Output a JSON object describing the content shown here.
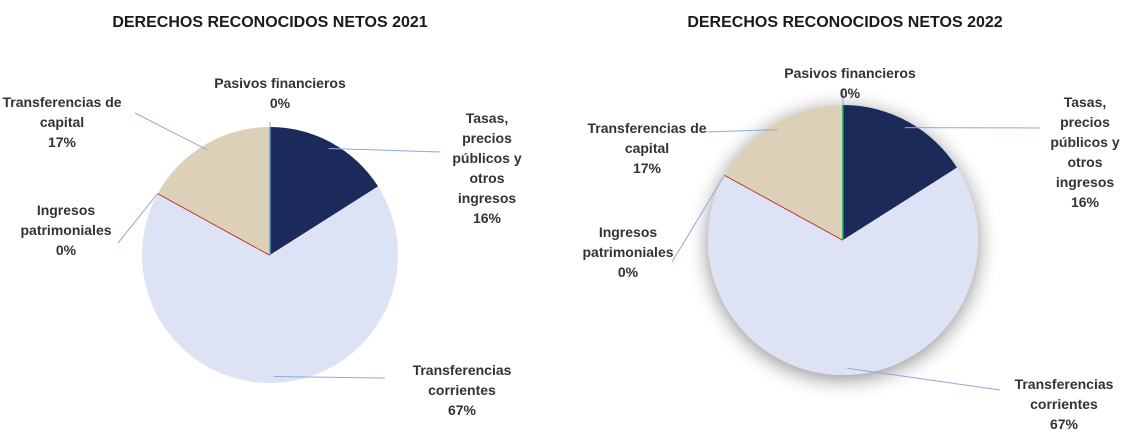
{
  "chart_data": [
    {
      "type": "pie",
      "title": "DERECHOS RECONOCIDOS NETOS 2021",
      "categories": [
        "Tasas, precios públicos y otros ingresos",
        "Transferencias corrientes",
        "Ingresos patrimoniales",
        "Transferencias de capital",
        "Pasivos financieros"
      ],
      "values": [
        16,
        67,
        0,
        17,
        0
      ],
      "value_labels": [
        "16%",
        "67%",
        "0%",
        "17%",
        "0%"
      ],
      "colors": [
        "#1b2a5a",
        "#dde3f5",
        "#c00000",
        "#ddd0b9",
        "#5b9bd5"
      ],
      "shadow": false
    },
    {
      "type": "pie",
      "title": "DERECHOS RECONOCIDOS NETOS 2022",
      "categories": [
        "Tasas, precios públicos y otros ingresos",
        "Transferencias corrientes",
        "Ingresos patrimoniales",
        "Transferencias de capital",
        "Pasivos financieros"
      ],
      "values": [
        16,
        67,
        0,
        17,
        0
      ],
      "value_labels": [
        "16%",
        "67%",
        "0%",
        "17%",
        "0%"
      ],
      "colors": [
        "#1b2a5a",
        "#dde3f5",
        "#c00000",
        "#ddd0b9",
        "#00b050"
      ],
      "shadow": true
    }
  ]
}
